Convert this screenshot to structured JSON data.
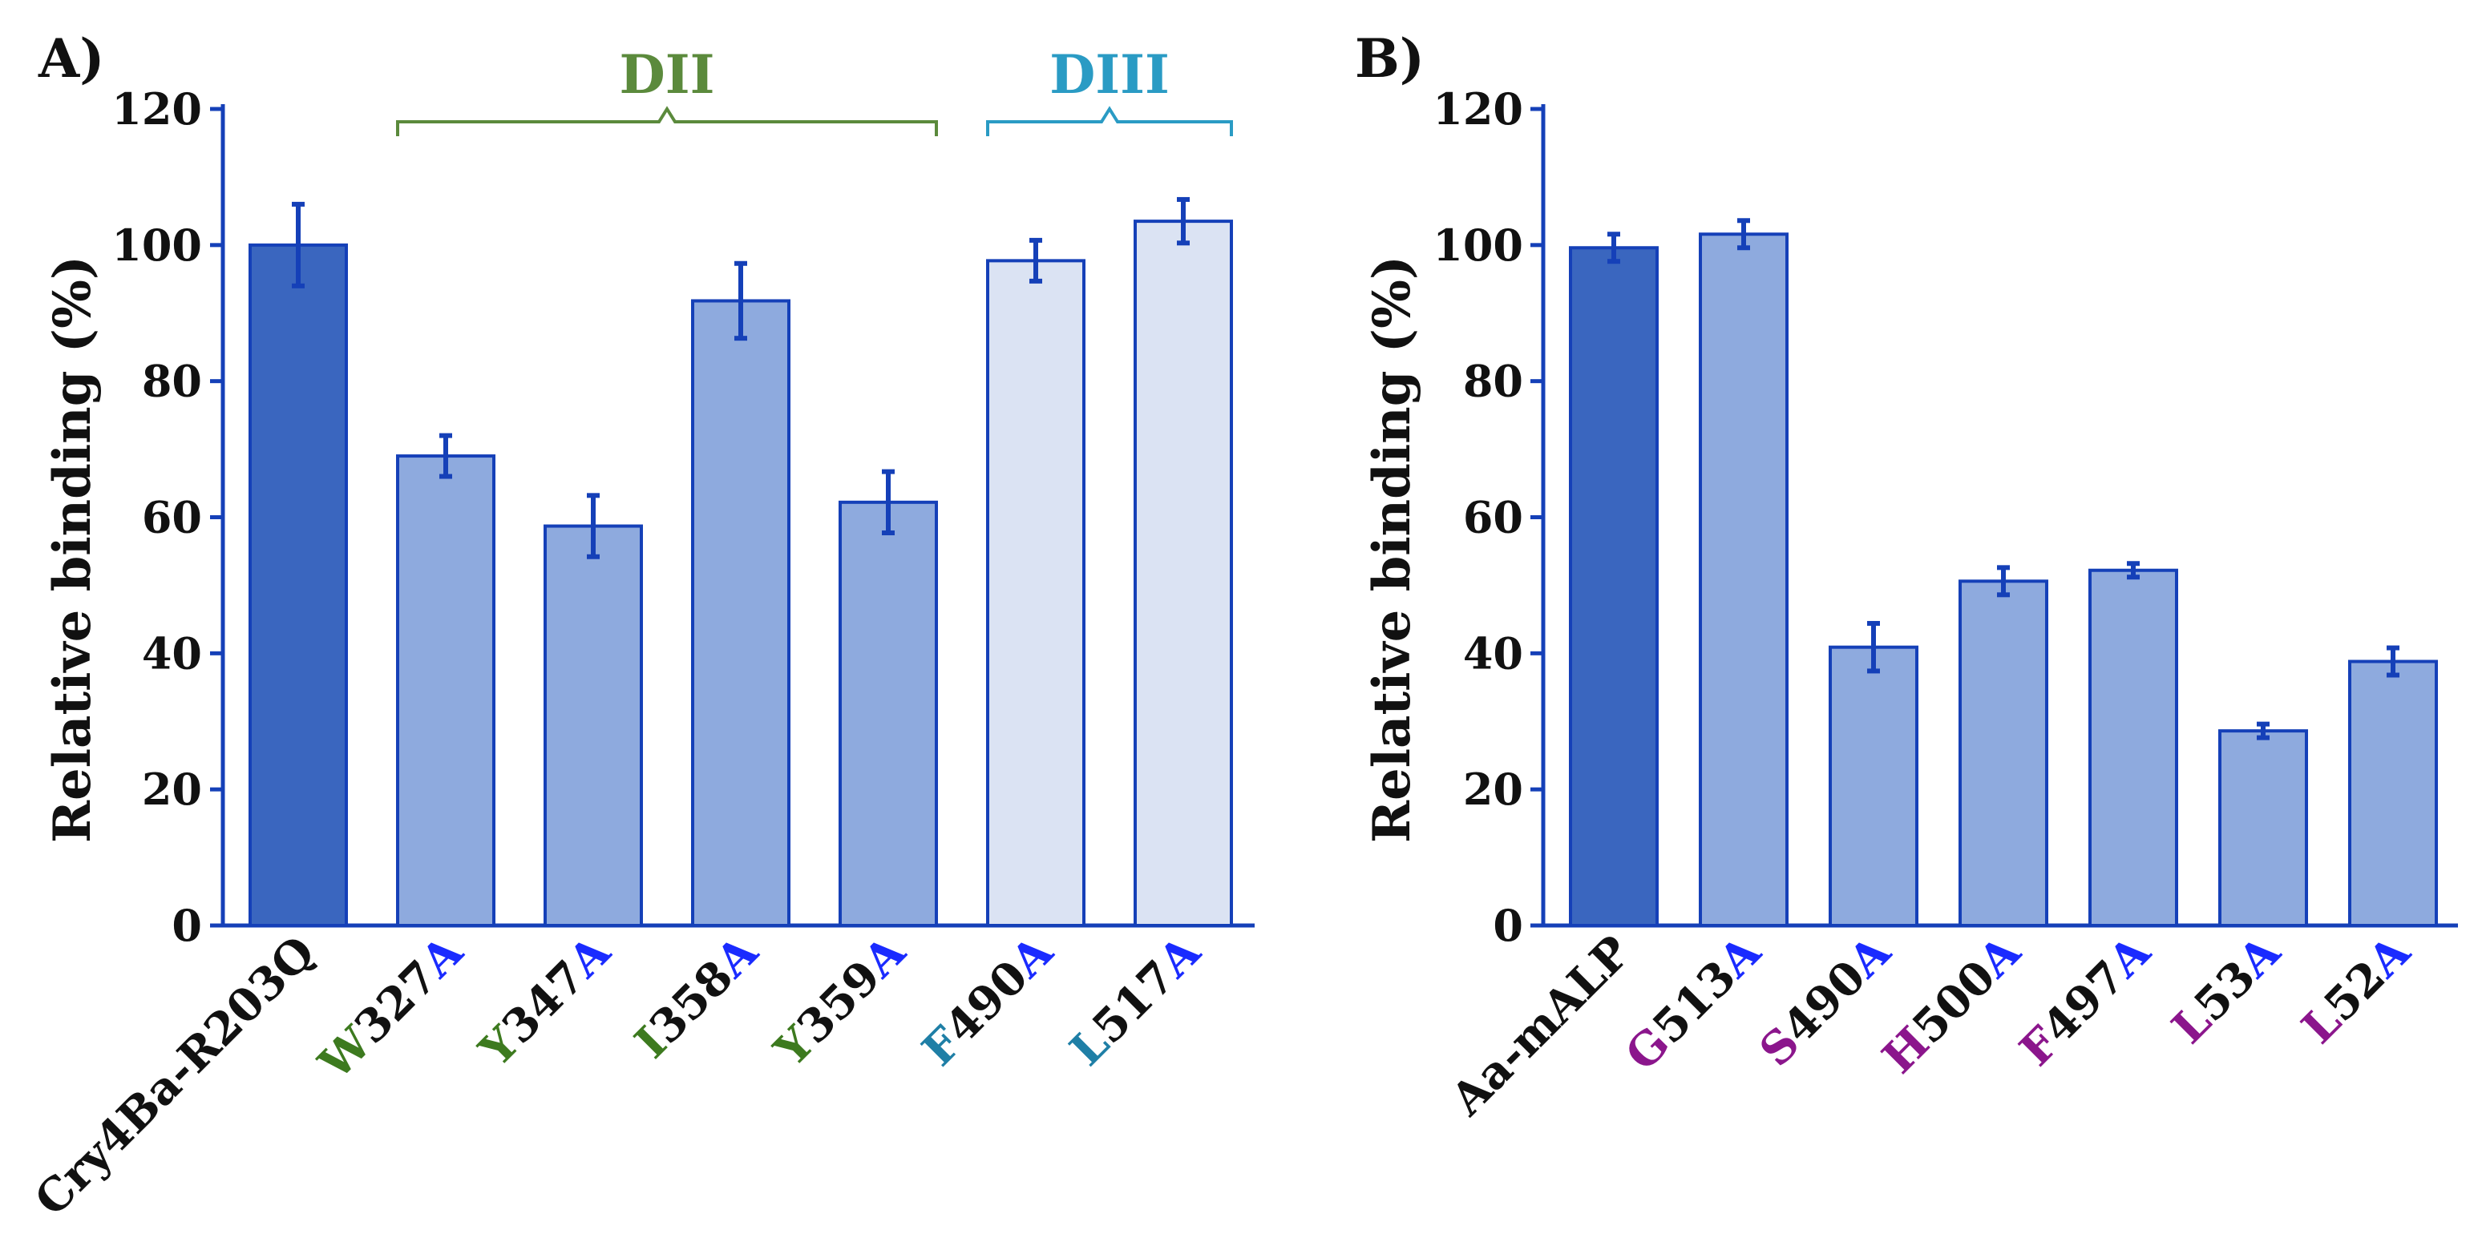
{
  "chart_data": [
    {
      "panel_label": "A)",
      "type": "bar",
      "ylabel": "Relative binding (%)",
      "ylim": [
        0,
        120
      ],
      "yticks": [
        0,
        20,
        40,
        60,
        80,
        100,
        120
      ],
      "categories": [
        {
          "prefix": "Cry4Ba-R203Q",
          "mid": "",
          "suffix": "",
          "group": "wt"
        },
        {
          "prefix": "W",
          "mid": "327",
          "suffix": "A",
          "group": "DII"
        },
        {
          "prefix": "Y",
          "mid": "347",
          "suffix": "A",
          "group": "DII"
        },
        {
          "prefix": "I",
          "mid": "358",
          "suffix": "A",
          "group": "DII"
        },
        {
          "prefix": "Y",
          "mid": "359",
          "suffix": "A",
          "group": "DII"
        },
        {
          "prefix": "F",
          "mid": "490",
          "suffix": "A",
          "group": "DIII"
        },
        {
          "prefix": "L",
          "mid": "517",
          "suffix": "A",
          "group": "DIII"
        }
      ],
      "values": [
        100,
        69,
        58.7,
        91.8,
        62.2,
        97.7,
        103.5
      ],
      "errors": [
        6,
        3,
        4.5,
        5.5,
        4.5,
        3,
        3.2
      ],
      "brackets": [
        {
          "label": "DII",
          "from": 1,
          "to": 4,
          "color": "#5b8a3c"
        },
        {
          "label": "DIII",
          "from": 5,
          "to": 6,
          "color": "#2a9bc4"
        }
      ]
    },
    {
      "panel_label": "B)",
      "type": "bar",
      "ylabel": "Relative binding (%)",
      "ylim": [
        0,
        120
      ],
      "yticks": [
        0,
        20,
        40,
        60,
        80,
        100,
        120
      ],
      "categories": [
        {
          "prefix": "Aa-mALP",
          "mid": "",
          "suffix": "",
          "group": "wt"
        },
        {
          "prefix": "G",
          "mid": "513",
          "suffix": "A",
          "group": "mut"
        },
        {
          "prefix": "S",
          "mid": "490",
          "suffix": "A",
          "group": "mut"
        },
        {
          "prefix": "H",
          "mid": "500",
          "suffix": "A",
          "group": "mut"
        },
        {
          "prefix": "F",
          "mid": "497",
          "suffix": "A",
          "group": "mut"
        },
        {
          "prefix": "L",
          "mid": "53",
          "suffix": "A",
          "group": "mut"
        },
        {
          "prefix": "L",
          "mid": "52",
          "suffix": "A",
          "group": "mut"
        }
      ],
      "values": [
        99.6,
        101.6,
        40.9,
        50.6,
        52.2,
        28.6,
        38.8
      ],
      "errors": [
        2,
        2,
        3.5,
        2,
        1,
        1,
        2
      ],
      "brackets": []
    }
  ],
  "colors": {
    "axis": "#1540b8",
    "bar_wt": "#3a66bf",
    "bar_mid": "#8eaade",
    "bar_light": "#dbe3f3",
    "bar_edge": "#1540b8",
    "error": "#1540b8",
    "text": "#111111",
    "suffix_blue": "#1a2bff",
    "prefix_green": "#3d7a1f",
    "prefix_teal": "#1f7fa6",
    "prefix_purple": "#8b168c"
  }
}
